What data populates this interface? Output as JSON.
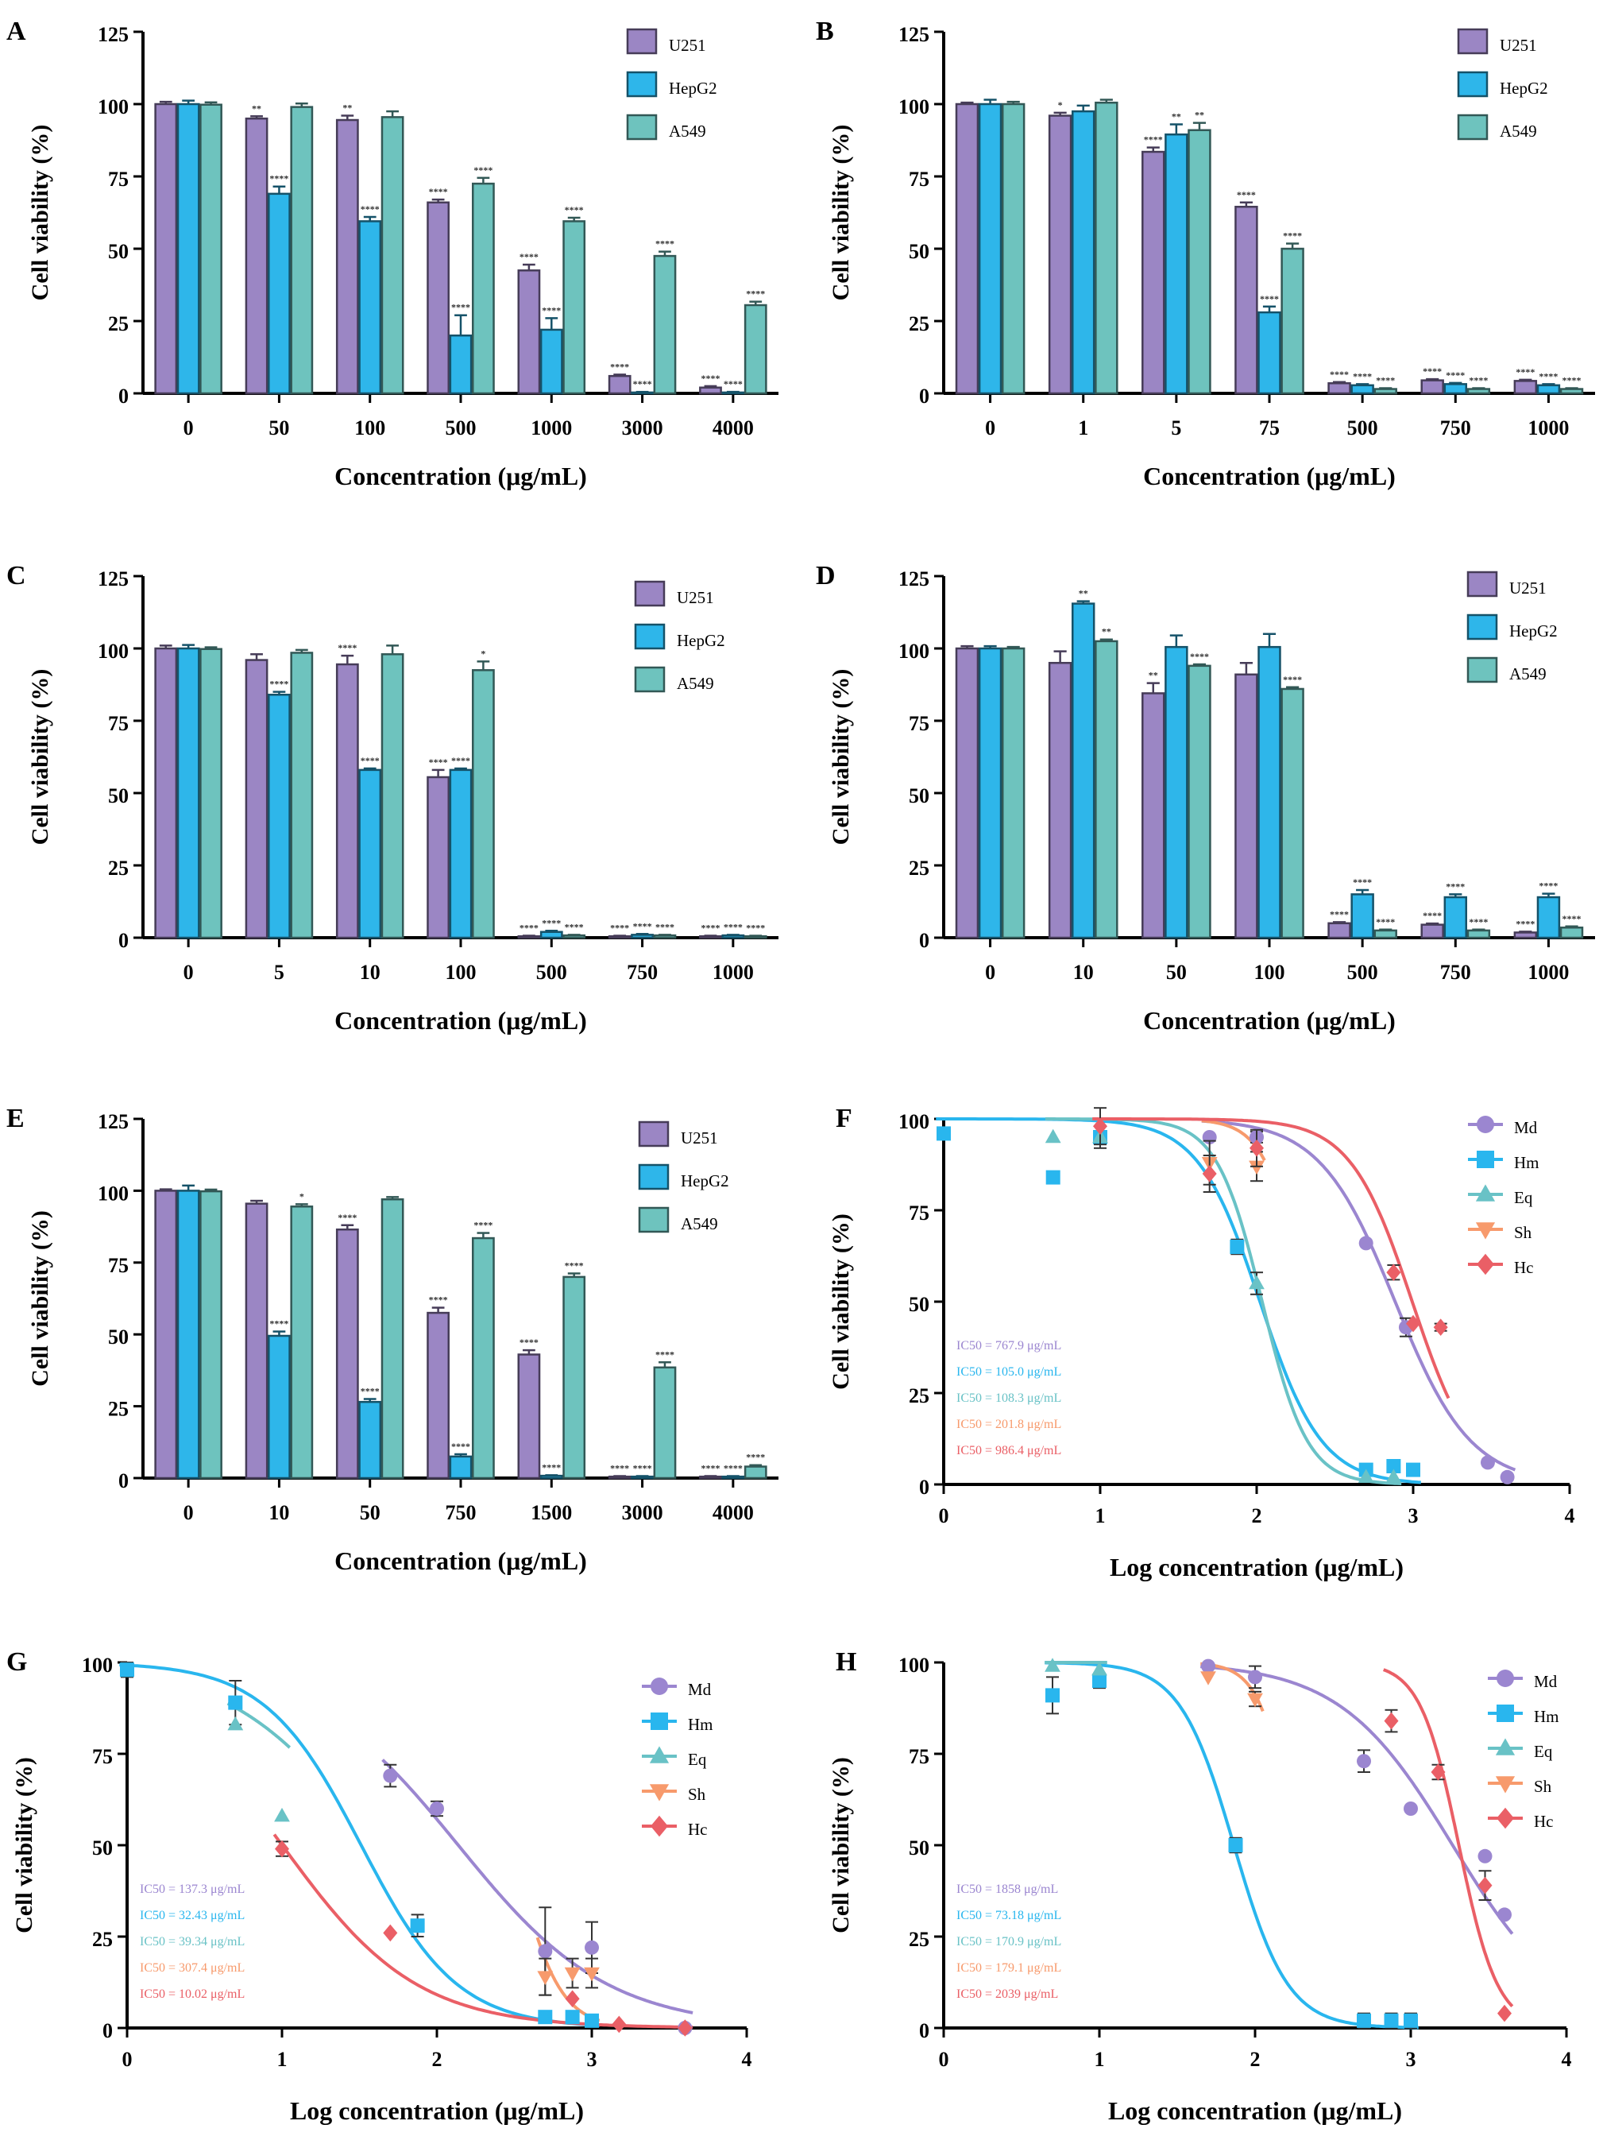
{
  "colors": {
    "U251": "#9b86c4",
    "HepG2": "#2eb6ea",
    "A549": "#6ec3be",
    "Md": "#9b86d0",
    "Hm": "#29b6ee",
    "Eq": "#69c2c6",
    "Sh": "#f79a6c",
    "Hc": "#ea5f66"
  },
  "chart_data": [
    {
      "panel": "A",
      "type": "bar",
      "ylabel": "Cell viability (%)",
      "xlabel": "Concentration (μg/mL)",
      "ylim": [
        0,
        125
      ],
      "yticks": [
        "0",
        "25",
        "50",
        "75",
        "100",
        "125"
      ],
      "categories": [
        "0",
        "50",
        "100",
        "500",
        "1000",
        "3000",
        "4000"
      ],
      "series": [
        {
          "name": "U251",
          "values": [
            100,
            95,
            94.5,
            66,
            42.5,
            6,
            2
          ],
          "errors": [
            0.8,
            0.8,
            1.5,
            1,
            2,
            0.5,
            0.5
          ],
          "stars": [
            "",
            "**",
            "**",
            "****",
            "****",
            "****",
            "****"
          ]
        },
        {
          "name": "HepG2",
          "values": [
            100,
            69,
            59.5,
            20,
            22,
            0.3,
            0.3
          ],
          "errors": [
            1.2,
            2.5,
            1.5,
            7,
            4,
            0.2,
            0.2
          ],
          "stars": [
            "",
            "****",
            "****",
            "****",
            "****",
            "****",
            "****"
          ]
        },
        {
          "name": "A549",
          "values": [
            99.8,
            99,
            95.5,
            72.5,
            59.5,
            47.5,
            30.5
          ],
          "errors": [
            0.8,
            1.2,
            2,
            2,
            1.2,
            1.5,
            1.2
          ],
          "stars": [
            "",
            "",
            "",
            "****",
            "****",
            "****",
            "****"
          ]
        }
      ]
    },
    {
      "panel": "B",
      "type": "bar",
      "ylabel": "Cell viability (%)",
      "xlabel": "Concentration (μg/mL)",
      "ylim": [
        0,
        125
      ],
      "yticks": [
        "0",
        "25",
        "50",
        "75",
        "100",
        "125"
      ],
      "categories": [
        "0",
        "1",
        "5",
        "75",
        "500",
        "750",
        "1000"
      ],
      "series": [
        {
          "name": "U251",
          "values": [
            100,
            96,
            83.5,
            64.5,
            3.5,
            4.5,
            4.3
          ],
          "errors": [
            0.5,
            1,
            1.5,
            1.5,
            0.4,
            0.4,
            0.4
          ],
          "stars": [
            "",
            "*",
            "****",
            "****",
            "****",
            "****",
            "****"
          ]
        },
        {
          "name": "HepG2",
          "values": [
            100,
            97.5,
            89.5,
            28,
            2.8,
            3.2,
            2.8
          ],
          "errors": [
            1.5,
            2,
            3.5,
            2,
            0.4,
            0.4,
            0.4
          ],
          "stars": [
            "",
            "",
            "**",
            "****",
            "****",
            "****",
            "****"
          ]
        },
        {
          "name": "A549",
          "values": [
            100,
            100.5,
            91,
            50,
            1.5,
            1.5,
            1.5
          ],
          "errors": [
            0.8,
            1,
            2.5,
            1.8,
            0.3,
            0.3,
            0.3
          ],
          "stars": [
            "",
            "",
            "**",
            "****",
            "****",
            "****",
            "****"
          ]
        }
      ]
    },
    {
      "panel": "C",
      "type": "bar",
      "ylabel": "Cell viability (%)",
      "xlabel": "Concentration (μg/mL)",
      "ylim": [
        0,
        125
      ],
      "yticks": [
        "0",
        "25",
        "50",
        "75",
        "100",
        "125"
      ],
      "categories": [
        "0",
        "5",
        "10",
        "100",
        "500",
        "750",
        "1000"
      ],
      "series": [
        {
          "name": "U251",
          "values": [
            100,
            96,
            94.5,
            55.5,
            0.5,
            0.5,
            0.5
          ],
          "errors": [
            1,
            2,
            3,
            2.5,
            0.2,
            0.2,
            0.2
          ],
          "stars": [
            "",
            "",
            "****",
            "****",
            "****",
            "****",
            "****"
          ]
        },
        {
          "name": "HepG2",
          "values": [
            100,
            84,
            58,
            58,
            2,
            1,
            0.8
          ],
          "errors": [
            1.2,
            1,
            0.5,
            0.5,
            0.4,
            0.3,
            0.2
          ],
          "stars": [
            "",
            "****",
            "****",
            "****",
            "****",
            "****",
            "****"
          ]
        },
        {
          "name": "A549",
          "values": [
            99.8,
            98.5,
            98,
            92.5,
            0.8,
            0.8,
            0.5
          ],
          "errors": [
            0.6,
            1,
            3,
            3,
            0.2,
            0.2,
            0.2
          ],
          "stars": [
            "",
            "",
            "",
            "*",
            "****",
            "****",
            "****"
          ]
        }
      ]
    },
    {
      "panel": "D",
      "type": "bar",
      "ylabel": "Cell viability (%)",
      "xlabel": "Concentration (μg/mL)",
      "ylim": [
        0,
        125
      ],
      "yticks": [
        "0",
        "25",
        "50",
        "75",
        "100",
        "125"
      ],
      "categories": [
        "0",
        "10",
        "50",
        "100",
        "500",
        "750",
        "1000"
      ],
      "series": [
        {
          "name": "U251",
          "values": [
            100,
            95,
            84.5,
            91,
            5,
            4.5,
            1.8
          ],
          "errors": [
            0.8,
            4,
            3.5,
            4,
            0.4,
            0.4,
            0.3
          ],
          "stars": [
            "",
            "",
            "**",
            "",
            "****",
            "****",
            "****"
          ]
        },
        {
          "name": "HepG2",
          "values": [
            100,
            115.5,
            100.5,
            100.5,
            15,
            14,
            14
          ],
          "errors": [
            0.8,
            0.8,
            4,
            4.5,
            1.5,
            1,
            1.2
          ],
          "stars": [
            "",
            "**",
            "",
            "",
            "****",
            "****",
            "****"
          ]
        },
        {
          "name": "A549",
          "values": [
            100,
            102.5,
            94,
            86,
            2.5,
            2.5,
            3.5
          ],
          "errors": [
            0.5,
            0.6,
            0.5,
            0.6,
            0.3,
            0.3,
            0.4
          ],
          "stars": [
            "",
            "**",
            "****",
            "****",
            "****",
            "****",
            "****"
          ]
        }
      ]
    },
    {
      "panel": "E",
      "type": "bar",
      "ylabel": "Cell viability (%)",
      "xlabel": "Concentration (μg/mL)",
      "ylim": [
        0,
        125
      ],
      "yticks": [
        "0",
        "25",
        "50",
        "75",
        "100",
        "125"
      ],
      "categories": [
        "0",
        "10",
        "50",
        "750",
        "1500",
        "3000",
        "4000"
      ],
      "series": [
        {
          "name": "U251",
          "values": [
            100,
            95.5,
            86.5,
            57.5,
            43,
            0.5,
            0.5
          ],
          "errors": [
            0.5,
            1,
            1.5,
            1.8,
            1.5,
            0.2,
            0.2
          ],
          "stars": [
            "",
            "",
            "****",
            "****",
            "****",
            "****",
            "****"
          ]
        },
        {
          "name": "HepG2",
          "values": [
            100,
            49.5,
            26.5,
            7.5,
            0.8,
            0.5,
            0.5
          ],
          "errors": [
            1.8,
            1.5,
            1,
            0.8,
            0.2,
            0.2,
            0.2
          ],
          "stars": [
            "",
            "****",
            "****",
            "****",
            "****",
            "****",
            "****"
          ]
        },
        {
          "name": "A549",
          "values": [
            99.8,
            94.5,
            97,
            83.5,
            70,
            38.5,
            4
          ],
          "errors": [
            0.6,
            0.8,
            0.8,
            1.8,
            1.2,
            1.8,
            0.5
          ],
          "stars": [
            "",
            "*",
            "",
            "****",
            "****",
            "****",
            "****"
          ]
        }
      ]
    },
    {
      "panel": "F",
      "type": "scatter",
      "ylabel": "Cell viability (%)",
      "xlabel": "Log concentration (μg/mL)",
      "xlim": [
        0,
        4
      ],
      "ylim": [
        0,
        100
      ],
      "xticks": [
        "0",
        "1",
        "2",
        "3",
        "4"
      ],
      "yticks": [
        "0",
        "25",
        "50",
        "75",
        "100"
      ],
      "series": [
        {
          "name": "Md",
          "marker": "circle",
          "x": [
            1.699,
            2.0,
            2.699,
            2.954,
            3.477,
            3.602
          ],
          "y": [
            95,
            95,
            66,
            43,
            6,
            2
          ],
          "err": [
            0,
            1.5,
            0,
            2.5,
            0,
            0
          ],
          "ic50": "IC50 = 767.9 μg/mL",
          "logic50": 2.885,
          "hill": 1.8
        },
        {
          "name": "Hm",
          "marker": "square",
          "x": [
            0,
            0.699,
            1.0,
            1.875,
            2.699,
            2.875,
            3.0
          ],
          "y": [
            96,
            84,
            95,
            65,
            4,
            5,
            4
          ],
          "err": [
            0,
            0,
            3,
            2,
            0,
            0,
            0
          ],
          "ic50": "IC50 = 105.0 μg/mL",
          "logic50": 2.021,
          "hill": 2.2
        },
        {
          "name": "Eq",
          "marker": "triangle",
          "x": [
            0.699,
            1.0,
            2.0,
            2.699,
            2.875
          ],
          "y": [
            95,
            95,
            55,
            2,
            2
          ],
          "err": [
            0,
            0,
            3,
            0,
            0
          ],
          "ic50": "IC50 = 108.3 μg/mL",
          "logic50": 2.035,
          "hill": 3.0
        },
        {
          "name": "Sh",
          "marker": "inv-triangle",
          "x": [
            1.699,
            2.0
          ],
          "y": [
            88,
            87
          ],
          "err": [
            6,
            4
          ],
          "ic50": "IC50 = 201.8 μg/mL",
          "logic50": 2.305,
          "hill": 3.5
        },
        {
          "name": "Hc",
          "marker": "diamond",
          "x": [
            1.0,
            1.699,
            2.0,
            2.875,
            3.0,
            3.176
          ],
          "y": [
            98,
            85,
            92,
            58,
            44,
            43
          ],
          "err": [
            5,
            5,
            5,
            2,
            0,
            1
          ],
          "ic50": "IC50 = 986.4 μg/mL",
          "logic50": 2.994,
          "hill": 2.2
        }
      ]
    },
    {
      "panel": "G",
      "type": "scatter",
      "ylabel": "Cell viability (%)",
      "xlabel": "Log concentration (μg/mL)",
      "xlim": [
        0,
        4
      ],
      "ylim": [
        0,
        100
      ],
      "xticks": [
        "0",
        "1",
        "2",
        "3",
        "4"
      ],
      "yticks": [
        "0",
        "25",
        "50",
        "75",
        "100"
      ],
      "series": [
        {
          "name": "Md",
          "marker": "circle",
          "x": [
            1.699,
            2.0,
            2.699,
            3.0,
            3.602
          ],
          "y": [
            69,
            60,
            21,
            22,
            0
          ],
          "err": [
            3,
            2,
            12,
            7,
            0
          ],
          "ic50": "IC50 = 137.3 μg/mL",
          "logic50": 2.138,
          "hill": 0.9
        },
        {
          "name": "Hm",
          "marker": "square",
          "x": [
            0,
            0.699,
            1.875,
            2.699,
            2.875,
            3.0
          ],
          "y": [
            98,
            89,
            28,
            3,
            3,
            2
          ],
          "err": [
            2,
            6,
            3,
            0,
            0,
            0
          ],
          "ic50": "IC50 = 32.43 μg/mL",
          "logic50": 1.511,
          "hill": 1.4
        },
        {
          "name": "Eq",
          "marker": "triangle",
          "x": [
            0.699,
            1.0
          ],
          "y": [
            83,
            58
          ],
          "err": [
            0,
            0
          ],
          "ic50": "IC50 = 39.34 μg/mL",
          "logic50": 1.595,
          "hill": 0.95
        },
        {
          "name": "Sh",
          "marker": "inv-triangle",
          "x": [
            2.699,
            2.875,
            3.0
          ],
          "y": [
            14,
            15,
            15
          ],
          "err": [
            5,
            4,
            4
          ],
          "ic50": "IC50 = 307.4 μg/mL",
          "logic50": 2.488,
          "hill": 3.0
        },
        {
          "name": "Hc",
          "marker": "diamond",
          "x": [
            1.0,
            1.699,
            2.875,
            3.176,
            3.602
          ],
          "y": [
            49,
            26,
            8,
            1,
            0
          ],
          "err": [
            2,
            0,
            0,
            0,
            0
          ],
          "ic50": "IC50 = 10.02 μg/mL",
          "logic50": 1.001,
          "hill": 1.0
        }
      ]
    },
    {
      "panel": "H",
      "type": "scatter",
      "ylabel": "Cell viability (%)",
      "xlabel": "Log concentration (μg/mL)",
      "xlim": [
        0,
        4
      ],
      "ylim": [
        0,
        100
      ],
      "xticks": [
        "0",
        "1",
        "2",
        "3",
        "4"
      ],
      "yticks": [
        "0",
        "25",
        "50",
        "75",
        "100"
      ],
      "series": [
        {
          "name": "Md",
          "marker": "circle",
          "x": [
            1.699,
            2.0,
            2.699,
            3.0,
            3.477,
            3.602
          ],
          "y": [
            99,
            96,
            73,
            60,
            47,
            31
          ],
          "err": [
            0,
            3,
            3,
            0,
            0,
            0
          ],
          "ic50": "IC50 = 1858 μg/mL",
          "logic50": 3.269,
          "hill": 1.2
        },
        {
          "name": "Hm",
          "marker": "square",
          "x": [
            0.699,
            1.0,
            1.875,
            2.699,
            2.875,
            3.0
          ],
          "y": [
            91,
            95,
            50,
            2,
            2,
            2
          ],
          "err": [
            5,
            2,
            2,
            2,
            2,
            2
          ],
          "ic50": "IC50 = 73.18 μg/mL",
          "logic50": 1.864,
          "hill": 2.5
        },
        {
          "name": "Eq",
          "marker": "triangle",
          "x": [
            0.699,
            1.0
          ],
          "y": [
            99,
            98
          ],
          "err": [
            0,
            0
          ],
          "ic50": "IC50 = 170.9 μg/mL",
          "logic50": 2.233,
          "hill": 4.5
        },
        {
          "name": "Sh",
          "marker": "inv-triangle",
          "x": [
            1.699,
            2.0
          ],
          "y": [
            96,
            90
          ],
          "err": [
            0,
            2
          ],
          "ic50": "IC50 = 179.1 μg/mL",
          "logic50": 2.253,
          "hill": 4.0
        },
        {
          "name": "Hc",
          "marker": "diamond",
          "x": [
            2.875,
            3.176,
            3.477,
            3.602
          ],
          "y": [
            84,
            70,
            39,
            4
          ],
          "err": [
            3,
            2,
            4,
            0
          ],
          "ic50": "IC50 = 2039 μg/mL",
          "logic50": 3.309,
          "hill": 3.5
        }
      ]
    }
  ]
}
